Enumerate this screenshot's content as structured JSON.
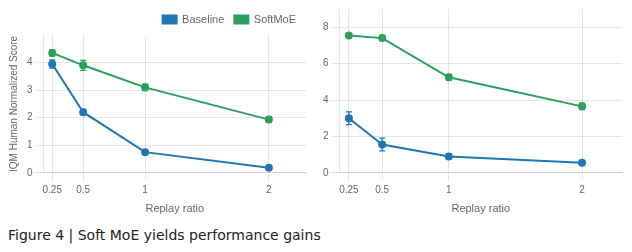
{
  "chart_data": [
    {
      "type": "line",
      "x": [
        0.25,
        0.5,
        1,
        2
      ],
      "xlabel": "Replay ratio",
      "ylabel": "IQM Human Normalized Score",
      "xlim": [
        0.18,
        2.3
      ],
      "xticks": [
        0.25,
        0.5,
        1,
        2
      ],
      "ylim": [
        0,
        5
      ],
      "yticks": [
        0,
        1,
        2,
        3,
        4
      ],
      "grid": true,
      "legend": "upper right",
      "series": [
        {
          "name": "Baseline",
          "color": "#1f77b4",
          "marker": "circle",
          "values": [
            3.95,
            2.2,
            0.75,
            0.18
          ],
          "errors": [
            0.15,
            0.1,
            0.08,
            0.06
          ]
        },
        {
          "name": "SoftMoE",
          "color": "#2ca05a",
          "marker": "circle",
          "values": [
            4.35,
            3.9,
            3.1,
            1.93
          ],
          "errors": [
            0.12,
            0.18,
            0.12,
            0.1
          ]
        }
      ]
    },
    {
      "type": "line",
      "x": [
        0.25,
        0.5,
        1,
        2
      ],
      "xlabel": "Replay ratio",
      "xlim": [
        0.18,
        2.3
      ],
      "xticks": [
        0.25,
        0.5,
        1,
        2
      ],
      "ylim": [
        0,
        9
      ],
      "yticks": [
        0,
        2,
        4,
        6,
        8
      ],
      "grid": true,
      "series": [
        {
          "name": "Baseline",
          "color": "#1f77b4",
          "marker": "circle",
          "values": [
            3.0,
            1.55,
            0.9,
            0.55
          ],
          "errors": [
            0.35,
            0.35,
            0.15,
            0.08
          ]
        },
        {
          "name": "SoftMoE",
          "color": "#2ca05a",
          "marker": "circle",
          "values": [
            7.55,
            7.4,
            5.25,
            3.65
          ],
          "errors": [
            0.1,
            0.1,
            0.15,
            0.18
          ]
        }
      ]
    }
  ],
  "caption": "Figure 4 | Soft MoE yields performance gains"
}
